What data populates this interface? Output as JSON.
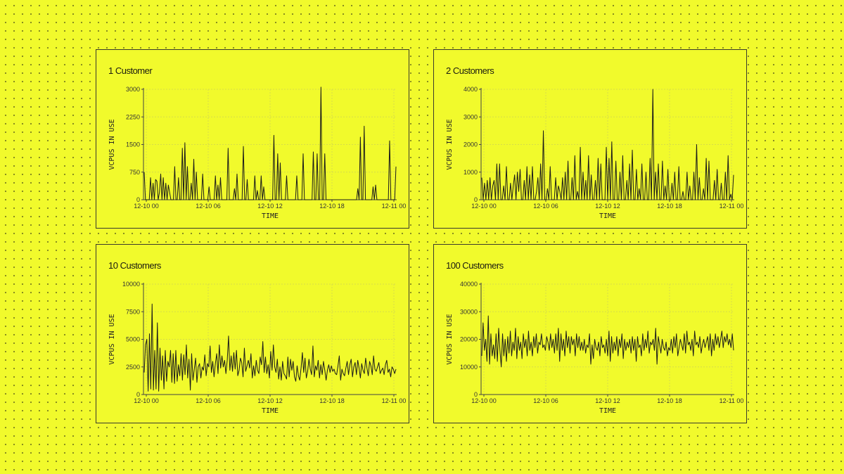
{
  "colors": {
    "background": "#f1fa2c",
    "line": "#1a1a1a",
    "grid": "#d6dc4a",
    "border": "#3a3a2c"
  },
  "chart_data": [
    {
      "type": "line",
      "title": "1 Customer",
      "xlabel": "TIME",
      "ylabel": "VCPUS IN USE",
      "ylim": [
        0,
        3000
      ],
      "yticks": [
        0,
        750,
        1500,
        2250,
        3000
      ],
      "xticks": [
        "12-10 00",
        "12-10 06",
        "12-10 12",
        "12-10 18",
        "12-11 00"
      ],
      "grid": true,
      "series": [
        {
          "values": [
            750,
            0,
            0,
            0,
            0,
            600,
            0,
            450,
            0,
            550,
            500,
            0,
            200,
            700,
            0,
            600,
            0,
            450,
            0,
            400,
            200,
            0,
            0,
            0,
            900,
            0,
            0,
            600,
            0,
            0,
            1400,
            0,
            1550,
            0,
            900,
            0,
            0,
            450,
            0,
            1100,
            0,
            750,
            0,
            0,
            0,
            0,
            700,
            0,
            0,
            0,
            0,
            350,
            0,
            0,
            0,
            0,
            650,
            0,
            400,
            0,
            600,
            0,
            0,
            0,
            0,
            0,
            1400,
            0,
            0,
            0,
            0,
            300,
            0,
            700,
            0,
            0,
            0,
            0,
            1450,
            0,
            0,
            550,
            0,
            0,
            0,
            0,
            0,
            650,
            0,
            250,
            0,
            0,
            650,
            0,
            350,
            0,
            0,
            0,
            0,
            0,
            0,
            0,
            1750,
            0,
            0,
            1250,
            0,
            1000,
            0,
            0,
            0,
            0,
            650,
            0,
            0,
            0,
            0,
            0,
            0,
            0,
            650,
            0,
            0,
            0,
            0,
            1250,
            0,
            0,
            0,
            0,
            0,
            0,
            0,
            1300,
            0,
            0,
            1250,
            0,
            0,
            3150,
            0,
            0,
            1250,
            0,
            0,
            0,
            0,
            0,
            0,
            0,
            0,
            0,
            0,
            0,
            0,
            0,
            0,
            0,
            0,
            0,
            0,
            0,
            0,
            0,
            0,
            0,
            0,
            0,
            300,
            0,
            1700,
            0,
            0,
            2000,
            0,
            0,
            0,
            0,
            0,
            0,
            350,
            0,
            400,
            0,
            0,
            0,
            0,
            0,
            0,
            0,
            0,
            0,
            0,
            1600,
            0,
            0,
            0,
            0,
            900
          ]
        }
      ]
    },
    {
      "type": "line",
      "title": "2 Customers",
      "xlabel": "TIME",
      "ylabel": "VCPUS IN USE",
      "ylim": [
        0,
        4000
      ],
      "yticks": [
        0,
        1000,
        2000,
        3000,
        4000
      ],
      "xticks": [
        "12-10 00",
        "12-10 06",
        "12-10 12",
        "12-10 18",
        "12-11 00"
      ],
      "grid": true,
      "series": [
        {
          "values": [
            800,
            0,
            600,
            0,
            700,
            0,
            800,
            0,
            500,
            700,
            0,
            1300,
            0,
            1300,
            0,
            0,
            500,
            0,
            1200,
            0,
            0,
            600,
            0,
            500,
            900,
            0,
            1000,
            300,
            1100,
            0,
            0,
            700,
            0,
            1200,
            0,
            900,
            0,
            1200,
            0,
            0,
            300,
            800,
            0,
            1300,
            0,
            2500,
            0,
            0,
            400,
            0,
            1200,
            0,
            0,
            0,
            800,
            0,
            500,
            300,
            0,
            800,
            0,
            1000,
            0,
            1400,
            0,
            0,
            800,
            0,
            1600,
            0,
            300,
            0,
            1900,
            0,
            1000,
            0,
            700,
            0,
            1600,
            0,
            900,
            0,
            0,
            700,
            0,
            1500,
            0,
            1300,
            0,
            0,
            0,
            1900,
            0,
            1500,
            0,
            2100,
            0,
            0,
            1400,
            0,
            0,
            1000,
            0,
            1600,
            0,
            0,
            700,
            0,
            1300,
            0,
            1800,
            0,
            0,
            1100,
            0,
            400,
            0,
            1300,
            0,
            0,
            1000,
            0,
            0,
            1500,
            0,
            4000,
            0,
            1000,
            0,
            1300,
            0,
            0,
            1400,
            0,
            500,
            0,
            1100,
            0,
            0,
            600,
            0,
            1000,
            0,
            0,
            1200,
            0,
            0,
            300,
            0,
            0,
            1000,
            0,
            500,
            0,
            0,
            1000,
            0,
            2000,
            0,
            800,
            0,
            0,
            400,
            0,
            1500,
            0,
            1400,
            0,
            0,
            0,
            700,
            0,
            1100,
            0,
            0,
            600,
            0,
            0,
            1000,
            0,
            1600,
            0,
            200,
            0,
            900
          ]
        }
      ]
    },
    {
      "type": "line",
      "title": "10 Customers",
      "xlabel": "TIME",
      "ylabel": "VCPUS IN USE",
      "ylim": [
        0,
        10000
      ],
      "yticks": [
        0,
        2500,
        5000,
        7500,
        10000
      ],
      "xticks": [
        "12-10 00",
        "12-10 06",
        "12-10 12",
        "12-10 18",
        "12-11 00"
      ],
      "grid": true,
      "series": [
        {
          "values": [
            2000,
            4500,
            5000,
            300,
            5500,
            500,
            8200,
            400,
            4000,
            500,
            6500,
            300,
            4200,
            1300,
            3500,
            500,
            4000,
            1200,
            3000,
            2500,
            4000,
            1100,
            3700,
            1000,
            4000,
            1200,
            2700,
            1700,
            3700,
            1300,
            3600,
            1800,
            4500,
            1500,
            3200,
            400,
            3700,
            1300,
            2300,
            3300,
            1100,
            2500,
            2800,
            1500,
            2500,
            2200,
            3600,
            1700,
            2800,
            2500,
            4400,
            2000,
            3000,
            1600,
            2800,
            3700,
            1900,
            4500,
            2400,
            3500,
            2500,
            3100,
            1900,
            3100,
            5300,
            2200,
            3500,
            2100,
            3800,
            2300,
            4000,
            1700,
            2200,
            3300,
            2900,
            1600,
            4200,
            2100,
            2600,
            3100,
            2400,
            3700,
            1500,
            2600,
            1700,
            3100,
            2200,
            1900,
            3400,
            2700,
            4800,
            2000,
            3400,
            1900,
            2700,
            1500,
            3900,
            2200,
            4500,
            2500,
            2000,
            3200,
            1400,
            2500,
            1300,
            3000,
            1900,
            1700,
            1400,
            3400,
            1600,
            3200,
            2200,
            3000,
            1600,
            1200,
            2600,
            1700,
            1300,
            2400,
            3800,
            2000,
            3300,
            1500,
            2100,
            3200,
            2300,
            1800,
            4400,
            1600,
            2600,
            2200,
            3100,
            1500,
            2700,
            1800,
            3000,
            2200,
            1300,
            2200,
            2700,
            2000,
            2600,
            2100,
            2300,
            1900,
            1800,
            2600,
            3500,
            1300,
            2300,
            1900,
            1700,
            2400,
            3000,
            1800,
            2700,
            3200,
            1600,
            2500,
            2900,
            1800,
            3100,
            2400,
            1500,
            2800,
            2200,
            1900,
            3300,
            2400,
            1700,
            3000,
            2600,
            1800,
            3500,
            2300,
            2100,
            2500,
            2900,
            1900,
            2200,
            2400,
            1800,
            2700,
            3100,
            2000,
            2300,
            1600,
            2500,
            2300,
            1900,
            2300
          ]
        }
      ]
    },
    {
      "type": "line",
      "title": "100 Customers",
      "xlabel": "TIME",
      "ylabel": "VCPUS IN USE",
      "ylim": [
        0,
        40000
      ],
      "yticks": [
        0,
        10000,
        20000,
        30000,
        40000
      ],
      "xticks": [
        "12-10 00",
        "12-10 06",
        "12-10 12",
        "12-10 18",
        "12-11 00"
      ],
      "grid": true,
      "series": [
        {
          "values": [
            14000,
            26000,
            16000,
            20000,
            12000,
            28500,
            11000,
            22000,
            14000,
            18000,
            13000,
            22000,
            12000,
            24000,
            16000,
            10000,
            22000,
            14000,
            20000,
            12000,
            21000,
            15000,
            23000,
            14000,
            19000,
            16000,
            24000,
            13000,
            21000,
            16000,
            19000,
            13000,
            22000,
            17000,
            20000,
            14000,
            23000,
            16000,
            19000,
            14000,
            21000,
            17000,
            22000,
            15000,
            19000,
            18000,
            22000,
            17000,
            18000,
            16000,
            21000,
            19000,
            16000,
            22000,
            17000,
            20000,
            15000,
            22000,
            16000,
            24000,
            12000,
            22000,
            16000,
            20000,
            14000,
            23000,
            17000,
            21000,
            15000,
            21000,
            18000,
            20000,
            14000,
            22000,
            17000,
            21000,
            16000,
            19000,
            16000,
            20000,
            15000,
            18000,
            17000,
            22000,
            11000,
            18000,
            13000,
            20000,
            17000,
            16000,
            19000,
            14000,
            21000,
            17000,
            18000,
            15000,
            20000,
            14000,
            23000,
            12000,
            21000,
            15000,
            19000,
            16000,
            21000,
            14000,
            20000,
            17000,
            22000,
            13000,
            20000,
            16000,
            19000,
            17000,
            20000,
            15000,
            21000,
            16000,
            20000,
            12000,
            21000,
            17000,
            18000,
            14000,
            22000,
            16000,
            20000,
            17000,
            23000,
            15000,
            19000,
            18000,
            20000,
            16000,
            24000,
            11000,
            21000,
            18000,
            15000,
            20000,
            17000,
            16000,
            19000,
            14000,
            17000,
            16000,
            20000,
            15000,
            21000,
            17000,
            22000,
            14000,
            17000,
            20000,
            18000,
            16000,
            22000,
            15000,
            23000,
            18000,
            19000,
            16000,
            20000,
            14000,
            23000,
            18000,
            19000,
            17000,
            21000,
            15000,
            18000,
            20000,
            17000,
            19000,
            21000,
            16000,
            22000,
            14000,
            20000,
            16000,
            22000,
            18000,
            21000,
            17000,
            20000,
            23000,
            17000,
            21000,
            19000,
            22000,
            18000,
            20000,
            17000,
            22000,
            16000
          ]
        }
      ]
    }
  ]
}
